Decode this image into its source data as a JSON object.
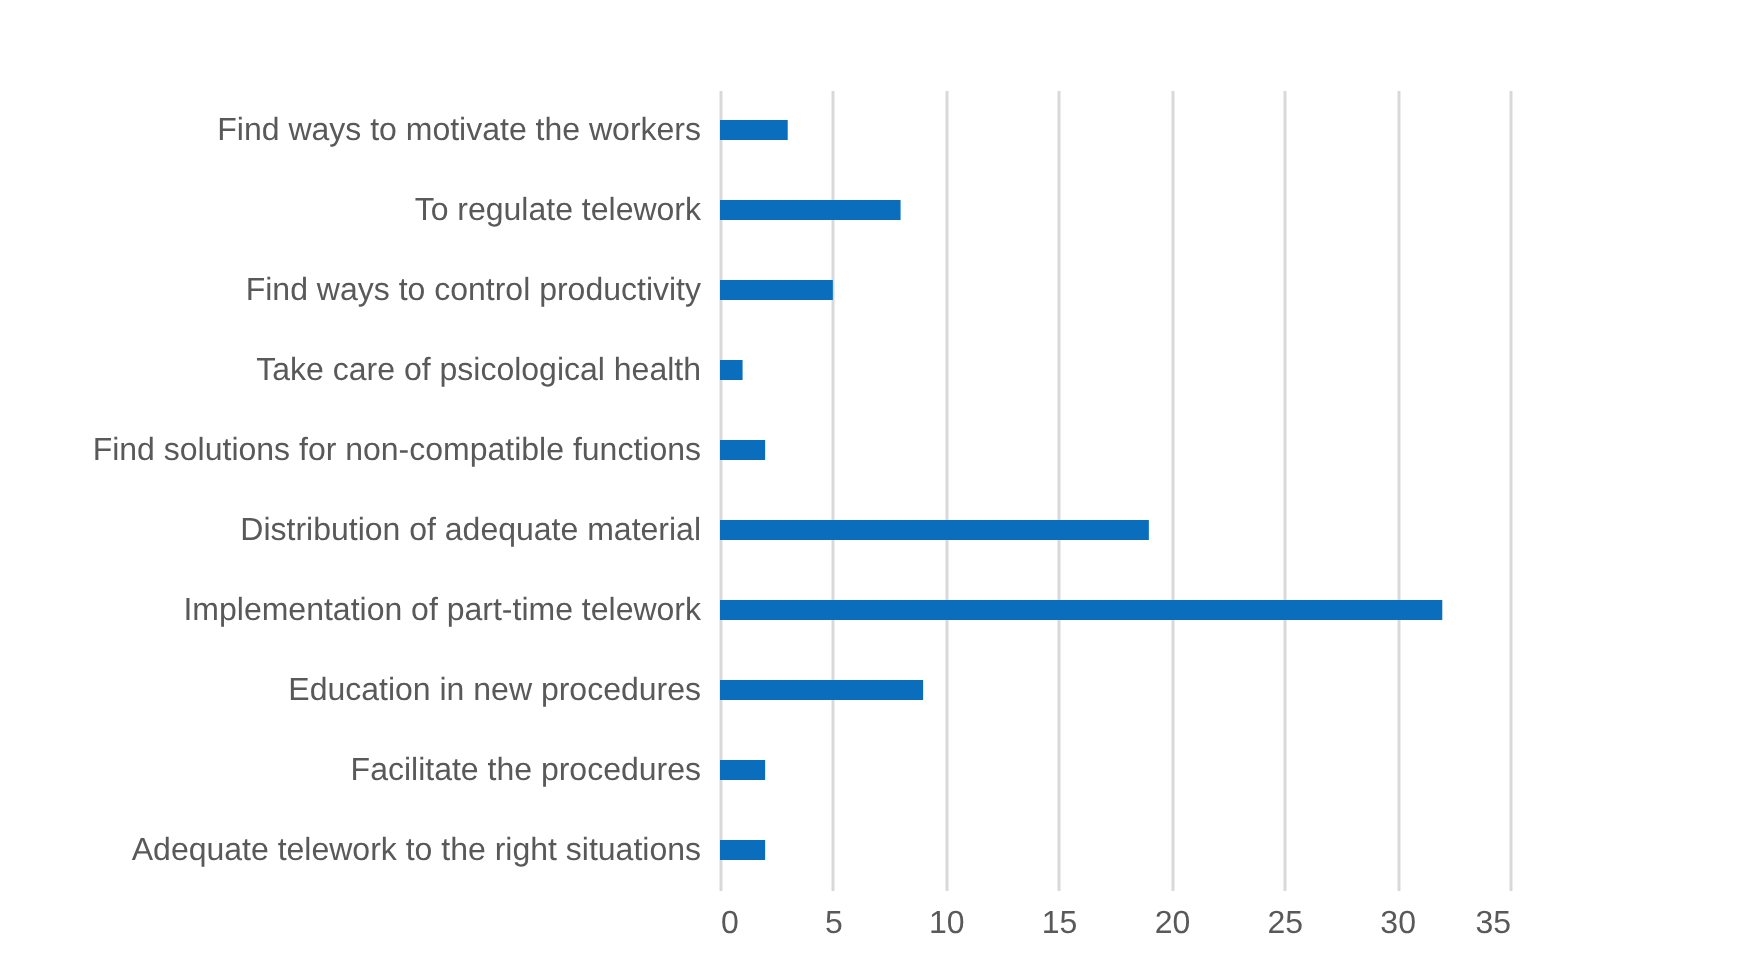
{
  "chart_data": {
    "type": "bar",
    "orientation": "horizontal",
    "categories": [
      "Find ways to motivate the workers",
      "To regulate telework",
      "Find ways to control productivity",
      "Take care of psicological health",
      "Find solutions for non-compatible functions",
      "Distribution of adequate material",
      "Implementation of part-time telework",
      "Education in new procedures",
      "Facilitate the procedures",
      "Adequate telework to the right situations"
    ],
    "values": [
      3,
      8,
      5,
      1,
      2,
      19,
      32,
      9,
      2,
      2
    ],
    "color": "#0a6ebd",
    "xlim": [
      0,
      35
    ],
    "xticks": [
      0,
      5,
      10,
      15,
      20,
      25,
      30,
      35
    ],
    "grid": "x"
  }
}
